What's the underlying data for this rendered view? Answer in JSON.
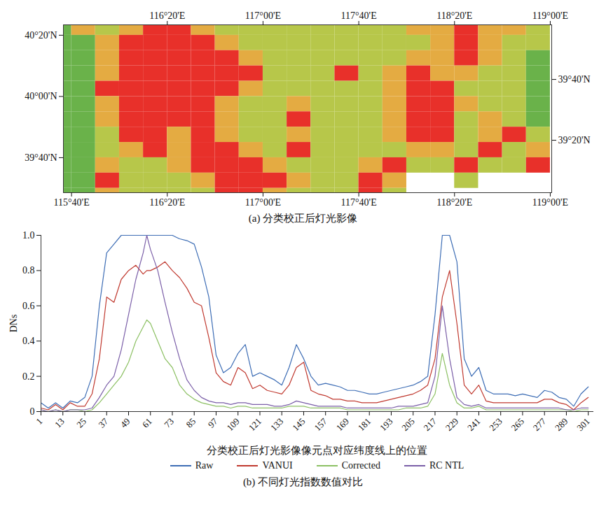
{
  "chart_data": [
    {
      "type": "heatmap",
      "caption": "(a) 分类校正后灯光影像",
      "xlim": [
        115.61,
        119.01
      ],
      "xticks": [
        {
          "value": 115.6667,
          "label": "115°40'E"
        },
        {
          "value": 116.3333,
          "label": "116°20'E"
        },
        {
          "value": 117,
          "label": "117°00'E"
        },
        {
          "value": 117.6667,
          "label": "117°40'E"
        },
        {
          "value": 118.3333,
          "label": "118°20'E"
        },
        {
          "value": 119,
          "label": "119°00'E"
        }
      ],
      "x2ticks": [
        {
          "value": 116.3333,
          "label": "116°20'E"
        },
        {
          "value": 117,
          "label": "117°00'E"
        },
        {
          "value": 117.6667,
          "label": "117°40'E"
        },
        {
          "value": 118.3333,
          "label": "118°20'E"
        },
        {
          "value": 119,
          "label": "119°00'E"
        }
      ],
      "ylim": [
        39.476,
        40.39
      ],
      "yticks": [
        {
          "value": 39.6667,
          "label": "39°40'N"
        },
        {
          "value": 40,
          "label": "40°00'N"
        },
        {
          "value": 40.3333,
          "label": "40°20'N"
        }
      ],
      "y2lim": [
        39.046,
        39.966
      ],
      "y2ticks": [
        {
          "value": 39.3333,
          "label": "39°20'N"
        },
        {
          "value": 39.6667,
          "label": "39°40'N"
        }
      ],
      "x_bins": [
        115.5,
        115.6667,
        115.8333,
        116,
        116.1667,
        116.3333,
        116.5,
        116.6667,
        116.8333,
        117,
        117.1667,
        117.3333,
        117.5,
        117.6667,
        117.8333,
        118,
        118.1667,
        118.3333,
        118.5,
        118.6667,
        118.8333,
        119
      ],
      "y_bins": [
        40.4167,
        40.3333,
        40.25,
        40.1667,
        40.0833,
        40,
        39.9167,
        39.8333,
        39.75,
        39.6667,
        39.5833,
        39.5,
        39.4167
      ],
      "cells": [
        [
          0,
          0.6,
          0.3,
          0.6,
          1,
          1,
          0.6,
          0.3,
          0.3,
          0.3,
          0.3,
          0.3,
          0.3,
          0.3,
          0.3,
          0.6,
          0.6,
          1,
          0.6,
          0.6,
          0.3
        ],
        [
          0,
          0,
          0.6,
          1,
          1,
          1,
          1,
          0.6,
          0.3,
          0.3,
          0.3,
          0.3,
          0.3,
          0.3,
          0.3,
          0.3,
          0.6,
          1,
          0.6,
          0.3,
          0.3
        ],
        [
          0,
          0,
          0.6,
          1,
          1,
          1,
          1,
          1,
          0.6,
          0.3,
          0.3,
          0.3,
          0.3,
          0.3,
          0.3,
          0.6,
          0.6,
          1,
          0.6,
          0.3,
          0
        ],
        [
          0,
          0,
          0.6,
          1,
          1,
          1,
          1,
          1,
          1,
          0.3,
          0.3,
          0.3,
          1,
          0.3,
          0.6,
          1,
          0.6,
          0.6,
          0.3,
          0.3,
          0
        ],
        [
          0,
          0,
          1,
          1,
          1,
          1,
          1,
          1,
          0.6,
          0.3,
          0.3,
          0.3,
          0.3,
          0.3,
          0.6,
          1,
          1,
          0.3,
          0.3,
          0.3,
          0
        ],
        [
          0,
          0,
          0.6,
          1,
          1,
          1,
          1,
          0.6,
          0.3,
          0.3,
          0.6,
          0.3,
          0.3,
          0.3,
          0.6,
          1,
          1,
          0.6,
          0.3,
          0.3,
          0
        ],
        [
          0,
          0,
          0.6,
          1,
          1,
          1,
          1,
          0.6,
          0.3,
          0.3,
          1,
          0.3,
          0.3,
          0.3,
          0.6,
          1,
          1,
          0.3,
          0.6,
          0.3,
          0
        ],
        [
          0,
          0,
          0.3,
          1,
          1,
          0.6,
          1,
          0.6,
          0.3,
          0.3,
          0.6,
          0.3,
          0.3,
          0.3,
          0.6,
          1,
          1,
          0.3,
          0.6,
          1,
          0.3
        ],
        [
          0,
          0,
          0.3,
          0.6,
          1,
          0.6,
          1,
          1,
          0.6,
          0.3,
          1,
          0.3,
          0.3,
          0.3,
          0.3,
          0.6,
          0.6,
          0.3,
          1,
          0.3,
          0.6
        ],
        [
          0,
          0,
          0.6,
          0.3,
          0.3,
          0.6,
          1,
          1,
          1,
          0.6,
          0.3,
          0.3,
          0.3,
          0.6,
          1,
          0.3,
          0.3,
          1,
          0.3,
          0.3,
          1
        ],
        [
          0,
          0,
          1,
          0.3,
          0.3,
          0.3,
          0.6,
          1,
          1,
          1,
          0.6,
          0.3,
          0.3,
          1,
          0.6,
          null,
          null,
          0.3,
          null,
          null,
          null
        ],
        [
          0,
          0,
          0.6,
          0.3,
          0.3,
          0.3,
          0.3,
          1,
          1,
          0.6,
          0.3,
          0.3,
          0.3,
          1,
          0.3,
          null,
          null,
          null,
          null,
          null,
          null
        ]
      ]
    },
    {
      "type": "line",
      "caption": "(b) 不同灯光指数数值对比",
      "x_label": "分类校正后灯光影像像元点对应纬度线上的位置",
      "y_label": "DNs",
      "xlim": [
        1,
        304
      ],
      "xticks": [
        1,
        13,
        25,
        37,
        49,
        61,
        73,
        85,
        97,
        109,
        121,
        133,
        145,
        157,
        169,
        181,
        193,
        205,
        217,
        229,
        241,
        253,
        265,
        277,
        289,
        301
      ],
      "ylim": [
        0,
        1
      ],
      "yticks": [
        0,
        0.2,
        0.4,
        0.6,
        0.8,
        {
          "value": 1,
          "label": "1.0"
        }
      ],
      "legend": "bottom",
      "x": [
        1,
        5,
        9,
        13,
        17,
        21,
        25,
        29,
        33,
        37,
        41,
        45,
        49,
        53,
        57,
        59,
        61,
        65,
        69,
        73,
        77,
        81,
        85,
        89,
        93,
        97,
        101,
        105,
        109,
        113,
        117,
        121,
        125,
        129,
        133,
        137,
        141,
        145,
        149,
        153,
        157,
        161,
        165,
        169,
        173,
        177,
        181,
        185,
        189,
        193,
        197,
        201,
        205,
        209,
        213,
        217,
        221,
        225,
        229,
        233,
        237,
        241,
        245,
        249,
        253,
        257,
        261,
        265,
        269,
        273,
        277,
        281,
        285,
        289,
        293,
        297,
        301
      ],
      "series": [
        {
          "name": "Raw",
          "color": "#3d6db5",
          "values": [
            0.05,
            0.02,
            0.05,
            0.02,
            0.06,
            0.05,
            0.08,
            0.2,
            0.6,
            0.9,
            0.95,
            1,
            1,
            1,
            1,
            1,
            1,
            1,
            1,
            1,
            0.98,
            0.97,
            0.95,
            0.82,
            0.65,
            0.32,
            0.22,
            0.25,
            0.33,
            0.38,
            0.2,
            0.22,
            0.2,
            0.18,
            0.15,
            0.25,
            0.38,
            0.3,
            0.2,
            0.15,
            0.16,
            0.15,
            0.14,
            0.12,
            0.12,
            0.11,
            0.1,
            0.1,
            0.11,
            0.12,
            0.13,
            0.14,
            0.15,
            0.17,
            0.2,
            0.55,
            1,
            1,
            0.85,
            0.3,
            0.2,
            0.25,
            0.12,
            0.1,
            0.1,
            0.1,
            0.09,
            0.1,
            0.09,
            0.08,
            0.12,
            0.11,
            0.08,
            0.07,
            0.03,
            0.1,
            0.14
          ]
        },
        {
          "name": "VANUI",
          "color": "#c0392f",
          "values": [
            0.02,
            0.01,
            0.04,
            0.01,
            0.05,
            0.03,
            0.03,
            0.1,
            0.3,
            0.65,
            0.62,
            0.75,
            0.8,
            0.83,
            0.78,
            0.8,
            0.8,
            0.82,
            0.85,
            0.8,
            0.76,
            0.7,
            0.62,
            0.6,
            0.42,
            0.22,
            0.17,
            0.15,
            0.25,
            0.22,
            0.13,
            0.15,
            0.12,
            0.11,
            0.1,
            0.15,
            0.25,
            0.28,
            0.12,
            0.1,
            0.09,
            0.07,
            0.07,
            0.06,
            0.06,
            0.05,
            0.05,
            0.05,
            0.06,
            0.07,
            0.08,
            0.09,
            0.1,
            0.12,
            0.15,
            0.3,
            0.65,
            0.8,
            0.5,
            0.15,
            0.1,
            0.15,
            0.06,
            0.05,
            0.05,
            0.05,
            0.05,
            0.05,
            0.05,
            0.05,
            0.07,
            0.07,
            0.05,
            0.04,
            0.01,
            0.05,
            0.08
          ]
        },
        {
          "name": "Corrected",
          "color": "#8cc063",
          "values": [
            0.01,
            0,
            0.01,
            0,
            0.01,
            0.01,
            0,
            0.01,
            0.05,
            0.1,
            0.15,
            0.2,
            0.28,
            0.4,
            0.48,
            0.52,
            0.5,
            0.4,
            0.3,
            0.25,
            0.15,
            0.1,
            0.07,
            0.05,
            0.04,
            0.03,
            0.03,
            0.02,
            0.03,
            0.03,
            0.02,
            0.02,
            0.02,
            0.02,
            0.02,
            0.03,
            0.03,
            0.03,
            0.02,
            0.02,
            0.02,
            0.02,
            0.02,
            0.01,
            0.01,
            0.01,
            0.01,
            0.01,
            0.01,
            0.01,
            0.01,
            0.02,
            0.02,
            0.02,
            0.03,
            0.1,
            0.33,
            0.15,
            0.05,
            0.02,
            0.02,
            0.03,
            0.01,
            0.01,
            0.01,
            0.01,
            0.01,
            0.01,
            0.01,
            0.01,
            0.01,
            0.01,
            0.01,
            0.01,
            0,
            0.01,
            0.01
          ]
        },
        {
          "name": "RC NTL",
          "color": "#7b5fa8",
          "values": [
            0.01,
            0,
            0.01,
            0,
            0.01,
            0.01,
            0.01,
            0.02,
            0.08,
            0.15,
            0.2,
            0.35,
            0.55,
            0.75,
            0.9,
            1,
            0.92,
            0.8,
            0.62,
            0.45,
            0.3,
            0.18,
            0.12,
            0.08,
            0.06,
            0.05,
            0.05,
            0.04,
            0.05,
            0.05,
            0.04,
            0.04,
            0.04,
            0.03,
            0.03,
            0.04,
            0.06,
            0.05,
            0.04,
            0.03,
            0.03,
            0.03,
            0.03,
            0.02,
            0.02,
            0.02,
            0.02,
            0.02,
            0.02,
            0.02,
            0.03,
            0.03,
            0.03,
            0.04,
            0.05,
            0.2,
            0.6,
            0.3,
            0.08,
            0.04,
            0.03,
            0.04,
            0.02,
            0.02,
            0.02,
            0.02,
            0.02,
            0.02,
            0.02,
            0.02,
            0.02,
            0.02,
            0.02,
            0.01,
            0.01,
            0.02,
            0.02
          ]
        }
      ]
    }
  ]
}
